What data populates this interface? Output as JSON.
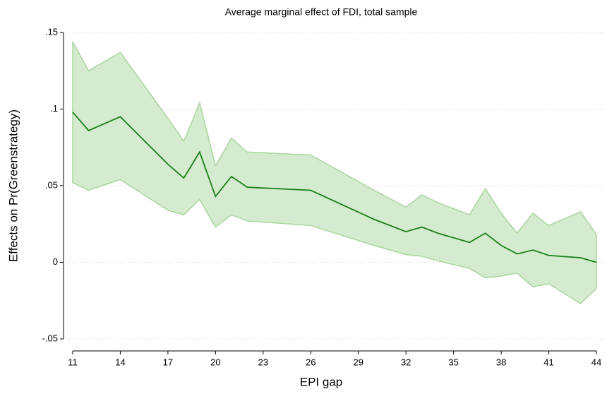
{
  "chart_data": {
    "type": "line-band",
    "title": "Average marginal effect of FDI, total sample",
    "xlabel": "EPI gap",
    "ylabel": "Effects on Pr(Greenstrategy)",
    "x": [
      11,
      12,
      14,
      17,
      18,
      19,
      20,
      21,
      22,
      26,
      30,
      32,
      33,
      34,
      36,
      37,
      38,
      39,
      40,
      41,
      43,
      44
    ],
    "values": [
      0.098,
      0.086,
      0.095,
      0.064,
      0.055,
      0.072,
      0.043,
      0.056,
      0.049,
      0.047,
      0.028,
      0.02,
      0.023,
      0.019,
      0.013,
      0.019,
      0.011,
      0.0055,
      0.008,
      0.0045,
      0.003,
      0.0
    ],
    "upper": [
      0.144,
      0.125,
      0.137,
      0.094,
      0.079,
      0.104,
      0.063,
      0.081,
      0.072,
      0.07,
      0.047,
      0.036,
      0.044,
      0.039,
      0.031,
      0.048,
      0.032,
      0.019,
      0.032,
      0.024,
      0.033,
      0.018
    ],
    "lower": [
      0.052,
      0.047,
      0.054,
      0.034,
      0.031,
      0.041,
      0.023,
      0.031,
      0.027,
      0.024,
      0.011,
      0.005,
      0.004,
      0.001,
      -0.004,
      -0.01,
      -0.009,
      -0.007,
      -0.016,
      -0.014,
      -0.027,
      -0.017
    ],
    "line_color": "#1a7f1a",
    "band_color": "#d5ebcf",
    "band_edge_color": "#a8d69d",
    "xlim": [
      11,
      44
    ],
    "ylim": [
      -0.05,
      0.15
    ],
    "xticks": [
      11,
      14,
      17,
      20,
      23,
      26,
      29,
      32,
      35,
      38,
      41,
      44
    ],
    "yticks": [
      {
        "value": -0.05,
        "label": "-.05"
      },
      {
        "value": 0,
        "label": "0"
      },
      {
        "value": 0.05,
        "label": ".05"
      },
      {
        "value": 0.1,
        "label": ".1"
      },
      {
        "value": 0.15,
        "label": ".15"
      }
    ],
    "grid": true
  }
}
